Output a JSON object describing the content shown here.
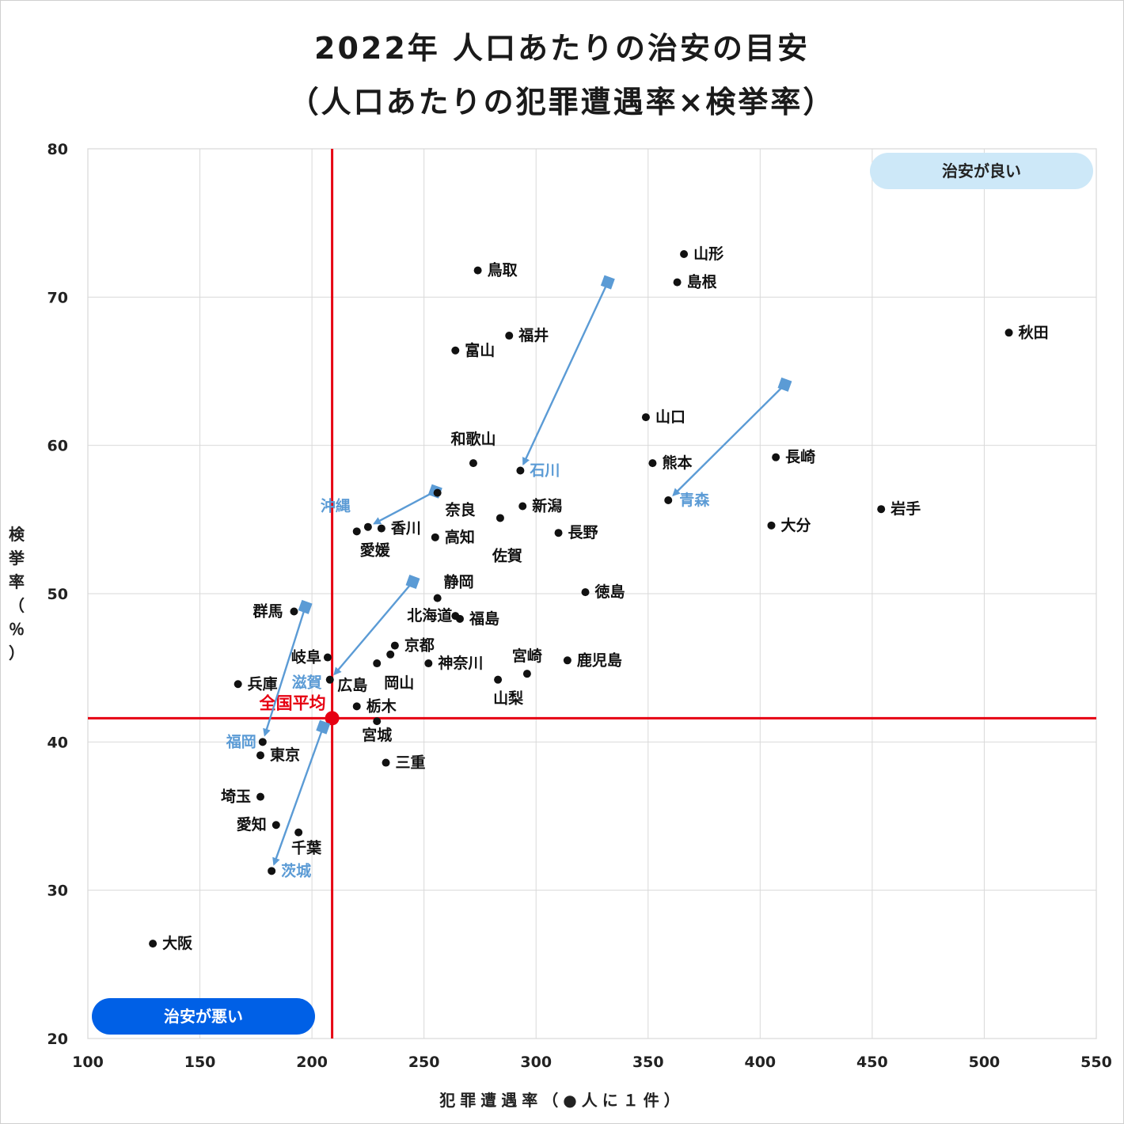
{
  "chart_data": {
    "type": "scatter",
    "title": "2022年 人口あたりの治安の目安",
    "subtitle": "（人口あたりの犯罪遭遇率×検挙率）",
    "xlabel": "犯罪遭遇率（●人に１件）",
    "ylabel": "検挙率（％）",
    "xlim": [
      100,
      550
    ],
    "ylim": [
      20,
      80
    ],
    "x_ticks": [
      "100",
      "150",
      "200",
      "250",
      "300",
      "350",
      "400",
      "450",
      "500",
      "550"
    ],
    "y_ticks": [
      "20",
      "30",
      "40",
      "50",
      "60",
      "70",
      "80"
    ],
    "grid": true,
    "colors": {
      "point": "#111111",
      "highlight": "#5b9bd5",
      "average": "#e60012",
      "good_badge": "#cde8f8",
      "bad_badge": "#0060e6"
    },
    "average": {
      "label": "全国平均",
      "x": 209,
      "y": 41.6
    },
    "badges": {
      "good": "治安が良い",
      "bad": "治安が悪い"
    },
    "points": [
      {
        "label": "山形",
        "x": 366,
        "y": 72.9
      },
      {
        "label": "島根",
        "x": 363,
        "y": 71.0
      },
      {
        "label": "鳥取",
        "x": 274,
        "y": 71.8
      },
      {
        "label": "秋田",
        "x": 511,
        "y": 67.6
      },
      {
        "label": "福井",
        "x": 288,
        "y": 67.4
      },
      {
        "label": "富山",
        "x": 264,
        "y": 66.4
      },
      {
        "label": "山口",
        "x": 349,
        "y": 61.9
      },
      {
        "label": "長崎",
        "x": 407,
        "y": 59.2
      },
      {
        "label": "和歌山",
        "x": 272,
        "y": 58.8
      },
      {
        "label": "熊本",
        "x": 352,
        "y": 58.8
      },
      {
        "label": "石川",
        "x": 293,
        "y": 58.3
      },
      {
        "label": "青森",
        "x": 359,
        "y": 56.3
      },
      {
        "label": "岩手",
        "x": 454,
        "y": 55.7
      },
      {
        "label": "奈良",
        "x": 256,
        "y": 56.8
      },
      {
        "label": "新潟",
        "x": 294,
        "y": 55.9
      },
      {
        "label": "佐賀",
        "x": 284,
        "y": 55.1
      },
      {
        "label": "大分",
        "x": 405,
        "y": 54.6
      },
      {
        "label": "沖縄",
        "x": 225,
        "y": 54.5
      },
      {
        "label": "香川",
        "x": 231,
        "y": 54.4
      },
      {
        "label": "愛媛",
        "x": 220,
        "y": 54.2
      },
      {
        "label": "長野",
        "x": 310,
        "y": 54.1
      },
      {
        "label": "高知",
        "x": 255,
        "y": 53.8
      },
      {
        "label": "徳島",
        "x": 322,
        "y": 50.1
      },
      {
        "label": "静岡",
        "x": 256,
        "y": 49.7
      },
      {
        "label": "群馬",
        "x": 192,
        "y": 48.8
      },
      {
        "label": "北海道",
        "x": 264,
        "y": 48.5
      },
      {
        "label": "福島",
        "x": 266,
        "y": 48.3
      },
      {
        "label": "京都",
        "x": 237,
        "y": 46.5
      },
      {
        "label": "岐阜",
        "x": 207,
        "y": 45.7
      },
      {
        "label": "岡山",
        "x": 235,
        "y": 45.9
      },
      {
        "label": "広島",
        "x": 229,
        "y": 45.3
      },
      {
        "label": "神奈川",
        "x": 252,
        "y": 45.3
      },
      {
        "label": "鹿児島",
        "x": 314,
        "y": 45.5
      },
      {
        "label": "宮崎",
        "x": 296,
        "y": 44.6
      },
      {
        "label": "滋賀",
        "x": 208,
        "y": 44.2
      },
      {
        "label": "山梨",
        "x": 283,
        "y": 44.2
      },
      {
        "label": "兵庫",
        "x": 167,
        "y": 43.9
      },
      {
        "label": "栃木",
        "x": 220,
        "y": 42.4
      },
      {
        "label": "宮城",
        "x": 229,
        "y": 41.4
      },
      {
        "label": "福岡",
        "x": 178,
        "y": 40.0
      },
      {
        "label": "東京",
        "x": 177,
        "y": 39.1
      },
      {
        "label": "三重",
        "x": 233,
        "y": 38.6
      },
      {
        "label": "埼玉",
        "x": 177,
        "y": 36.3
      },
      {
        "label": "愛知",
        "x": 184,
        "y": 34.4
      },
      {
        "label": "千葉",
        "x": 194,
        "y": 33.9
      },
      {
        "label": "茨城",
        "x": 182,
        "y": 31.3
      },
      {
        "label": "大阪",
        "x": 129,
        "y": 26.4
      }
    ],
    "previous": [
      {
        "label": "石川",
        "from": [
          332,
          71.0
        ],
        "to": [
          293,
          58.3
        ]
      },
      {
        "label": "青森",
        "from": [
          411,
          64.1
        ],
        "to": [
          359,
          56.3
        ]
      },
      {
        "label": "沖縄",
        "from": [
          255,
          56.9
        ],
        "to": [
          225,
          54.5
        ]
      },
      {
        "label": "滋賀",
        "from": [
          245,
          50.8
        ],
        "to": [
          208,
          44.2
        ]
      },
      {
        "label": "福岡",
        "from": [
          197,
          49.1
        ],
        "to": [
          178,
          40.0
        ]
      },
      {
        "label": "茨城",
        "from": [
          205,
          41.0
        ],
        "to": [
          182,
          31.3
        ]
      }
    ]
  }
}
